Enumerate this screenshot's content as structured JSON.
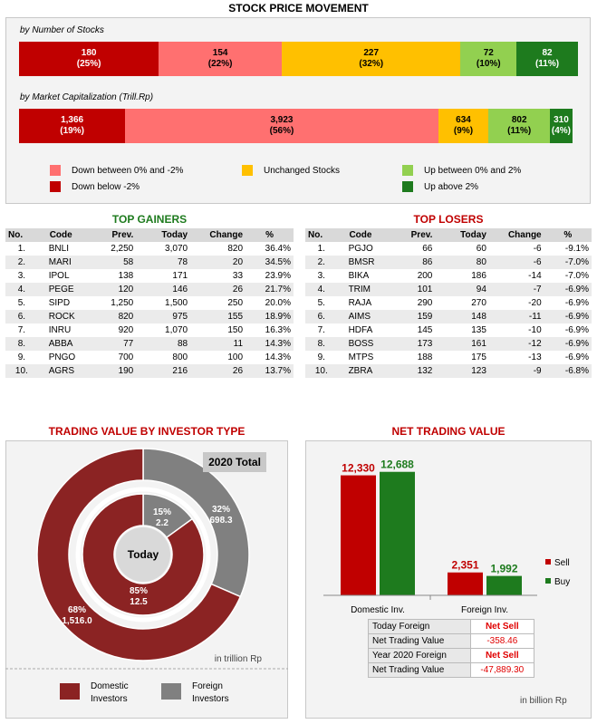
{
  "title": "STOCK PRICE MOVEMENT",
  "colors": {
    "down_big": "#c00000",
    "down": "#ff7070",
    "unch": "#ffc000",
    "up": "#92d050",
    "up_big": "#1e7b1e",
    "domestic": "#8b2323",
    "foreign": "#808080"
  },
  "movement": {
    "by_number_label": "by Number of Stocks",
    "by_number": [
      {
        "value": "180",
        "pct": "(25%)",
        "share": 25
      },
      {
        "value": "154",
        "pct": "(22%)",
        "share": 22
      },
      {
        "value": "227",
        "pct": "(32%)",
        "share": 32
      },
      {
        "value": "72",
        "pct": "(10%)",
        "share": 10
      },
      {
        "value": "82",
        "pct": "(11%)",
        "share": 11
      }
    ],
    "by_cap_label": "by Market Capitalization (Trill.Rp)",
    "by_cap": [
      {
        "value": "1,366",
        "pct": "(19%)",
        "share": 19
      },
      {
        "value": "3,923",
        "pct": "(56%)",
        "share": 56
      },
      {
        "value": "634",
        "pct": "(9%)",
        "share": 9
      },
      {
        "value": "802",
        "pct": "(11%)",
        "share": 11
      },
      {
        "value": "310",
        "pct": "(4%)",
        "share": 4
      }
    ],
    "legend": {
      "down": "Down between 0% and -2%",
      "down_big": "Down below -2%",
      "unch": "Unchanged Stocks",
      "up": "Up between 0% and 2%",
      "up_big": "Up above 2%"
    }
  },
  "gainers": {
    "title": "TOP GAINERS",
    "headers": [
      "No.",
      "Code",
      "Prev.",
      "Today",
      "Change",
      "%"
    ],
    "rows": [
      [
        "1.",
        "BNLI",
        "2,250",
        "3,070",
        "820",
        "36.4%"
      ],
      [
        "2.",
        "MARI",
        "58",
        "78",
        "20",
        "34.5%"
      ],
      [
        "3.",
        "IPOL",
        "138",
        "171",
        "33",
        "23.9%"
      ],
      [
        "4.",
        "PEGE",
        "120",
        "146",
        "26",
        "21.7%"
      ],
      [
        "5.",
        "SIPD",
        "1,250",
        "1,500",
        "250",
        "20.0%"
      ],
      [
        "6.",
        "ROCK",
        "820",
        "975",
        "155",
        "18.9%"
      ],
      [
        "7.",
        "INRU",
        "920",
        "1,070",
        "150",
        "16.3%"
      ],
      [
        "8.",
        "ABBA",
        "77",
        "88",
        "11",
        "14.3%"
      ],
      [
        "9.",
        "PNGO",
        "700",
        "800",
        "100",
        "14.3%"
      ],
      [
        "10.",
        "AGRS",
        "190",
        "216",
        "26",
        "13.7%"
      ]
    ]
  },
  "losers": {
    "title": "TOP LOSERS",
    "headers": [
      "No.",
      "Code",
      "Prev.",
      "Today",
      "Change",
      "%"
    ],
    "rows": [
      [
        "1.",
        "PGJO",
        "66",
        "60",
        "-6",
        "-9.1%"
      ],
      [
        "2.",
        "BMSR",
        "86",
        "80",
        "-6",
        "-7.0%"
      ],
      [
        "3.",
        "BIKA",
        "200",
        "186",
        "-14",
        "-7.0%"
      ],
      [
        "4.",
        "TRIM",
        "101",
        "94",
        "-7",
        "-6.9%"
      ],
      [
        "5.",
        "RAJA",
        "290",
        "270",
        "-20",
        "-6.9%"
      ],
      [
        "6.",
        "AIMS",
        "159",
        "148",
        "-11",
        "-6.9%"
      ],
      [
        "7.",
        "HDFA",
        "145",
        "135",
        "-10",
        "-6.9%"
      ],
      [
        "8.",
        "BOSS",
        "173",
        "161",
        "-12",
        "-6.9%"
      ],
      [
        "9.",
        "MTPS",
        "188",
        "175",
        "-13",
        "-6.9%"
      ],
      [
        "10.",
        "ZBRA",
        "132",
        "123",
        "-9",
        "-6.8%"
      ]
    ]
  },
  "investor": {
    "title": "TRADING VALUE BY INVESTOR TYPE",
    "total_label": "2020 Total",
    "center_label": "Today",
    "outer_domestic_pct": "68%",
    "outer_domestic_val": "1,516.0",
    "outer_domestic_share": 68.5,
    "outer_foreign_pct": "32%",
    "outer_foreign_val": "698.3",
    "inner_domestic_pct": "85%",
    "inner_domestic_val": "12.5",
    "inner_domestic_share": 85,
    "inner_foreign_pct": "15%",
    "inner_foreign_val": "2.2",
    "unit": "in trillion Rp",
    "legend_domestic_1": "Domestic",
    "legend_domestic_2": "Investors",
    "legend_foreign_1": "Foreign",
    "legend_foreign_2": "Investors"
  },
  "net": {
    "title": "NET TRADING VALUE",
    "chart_data": {
      "type": "bar",
      "categories": [
        "Domestic Inv.",
        "Foreign Inv."
      ],
      "series": [
        {
          "name": "Sell",
          "values": [
            12330,
            2351
          ],
          "labels": [
            "12,330",
            "2,351"
          ]
        },
        {
          "name": "Buy",
          "values": [
            12688,
            1992
          ],
          "labels": [
            "12,688",
            "1,992"
          ]
        }
      ],
      "ylim": [
        0,
        13500
      ]
    },
    "today_label_1": "Today Foreign",
    "today_label_2": "Net Trading Value",
    "today_status": "Net Sell",
    "today_value": "-358.46",
    "year_label_1": "Year 2020 Foreign",
    "year_label_2": "Net Trading Value",
    "year_status": "Net Sell",
    "year_value": "-47,889.30",
    "unit": "in billion Rp"
  }
}
